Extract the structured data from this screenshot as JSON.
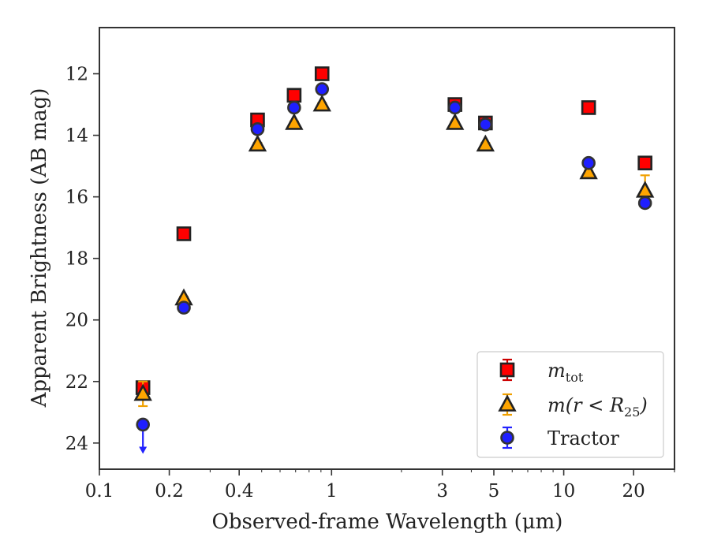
{
  "chart_data": {
    "type": "scatter",
    "xlabel": "Observed-frame Wavelength (μm)",
    "ylabel": "Apparent Brightness (AB mag)",
    "xscale": "log",
    "xlim": [
      0.1,
      30
    ],
    "ylim": [
      24.85,
      10.5
    ],
    "y_inverted": true,
    "x_ticks": [
      0.1,
      0.2,
      0.4,
      1,
      3,
      5,
      10,
      20
    ],
    "x_tick_labels": [
      "0.1",
      "0.2",
      "0.4",
      "1",
      "3",
      "5",
      "10",
      "20"
    ],
    "y_ticks": [
      12,
      14,
      16,
      18,
      20,
      22,
      24
    ],
    "y_tick_labels": [
      "12",
      "14",
      "16",
      "18",
      "20",
      "22",
      "24"
    ],
    "grid": false,
    "legend_position": "lower-right",
    "series": [
      {
        "name": "m_tot",
        "legend_main": "m",
        "legend_sub": "tot",
        "marker": "square",
        "color": "#ff0000",
        "edge_color": "#222222",
        "errorbar_color": "#cc0000",
        "points": [
          {
            "x": 0.154,
            "y": 22.2,
            "err": 0.1
          },
          {
            "x": 0.231,
            "y": 17.2,
            "err": 0.05
          },
          {
            "x": 0.48,
            "y": 13.5,
            "err": 0.05
          },
          {
            "x": 0.69,
            "y": 12.7,
            "err": 0.05
          },
          {
            "x": 0.91,
            "y": 12.0,
            "err": 0.05
          },
          {
            "x": 3.4,
            "y": 13.0,
            "err": 0.05
          },
          {
            "x": 4.6,
            "y": 13.6,
            "err": 0.05
          },
          {
            "x": 12.8,
            "y": 13.1,
            "err": 0.05
          },
          {
            "x": 22.4,
            "y": 14.9,
            "err": 0.05
          }
        ]
      },
      {
        "name": "m(r < R_25)",
        "legend_main": "m(r < R",
        "legend_sub": "25",
        "legend_tail": ")",
        "marker": "triangle",
        "color": "#ffa500",
        "edge_color": "#222222",
        "errorbar_color": "#f0a000",
        "points": [
          {
            "x": 0.154,
            "y": 22.4,
            "err": 0.4
          },
          {
            "x": 0.231,
            "y": 19.3,
            "err": 0.05
          },
          {
            "x": 0.48,
            "y": 14.3,
            "err": 0.05
          },
          {
            "x": 0.69,
            "y": 13.6,
            "err": 0.05
          },
          {
            "x": 0.91,
            "y": 13.0,
            "err": 0.05
          },
          {
            "x": 3.4,
            "y": 13.6,
            "err": 0.05
          },
          {
            "x": 4.6,
            "y": 14.3,
            "err": 0.05
          },
          {
            "x": 12.8,
            "y": 15.2,
            "err": 0.05
          },
          {
            "x": 22.4,
            "y": 15.8,
            "err": 0.5
          }
        ]
      },
      {
        "name": "Tractor",
        "marker": "circle",
        "color": "#1f1fff",
        "edge_color": "#333333",
        "errorbar_color": "#2222ff",
        "points": [
          {
            "x": 0.154,
            "y": 23.4,
            "upper_limit": true
          },
          {
            "x": 0.231,
            "y": 19.6,
            "err": 0.05
          },
          {
            "x": 0.48,
            "y": 13.8,
            "err": 0.05
          },
          {
            "x": 0.69,
            "y": 13.1,
            "err": 0.05
          },
          {
            "x": 0.91,
            "y": 12.5,
            "err": 0.05
          },
          {
            "x": 3.4,
            "y": 13.1,
            "err": 0.05
          },
          {
            "x": 4.6,
            "y": 13.65,
            "err": 0.05
          },
          {
            "x": 12.8,
            "y": 14.9,
            "err": 0.05
          },
          {
            "x": 22.4,
            "y": 16.2,
            "err": 0.1
          }
        ]
      }
    ]
  }
}
